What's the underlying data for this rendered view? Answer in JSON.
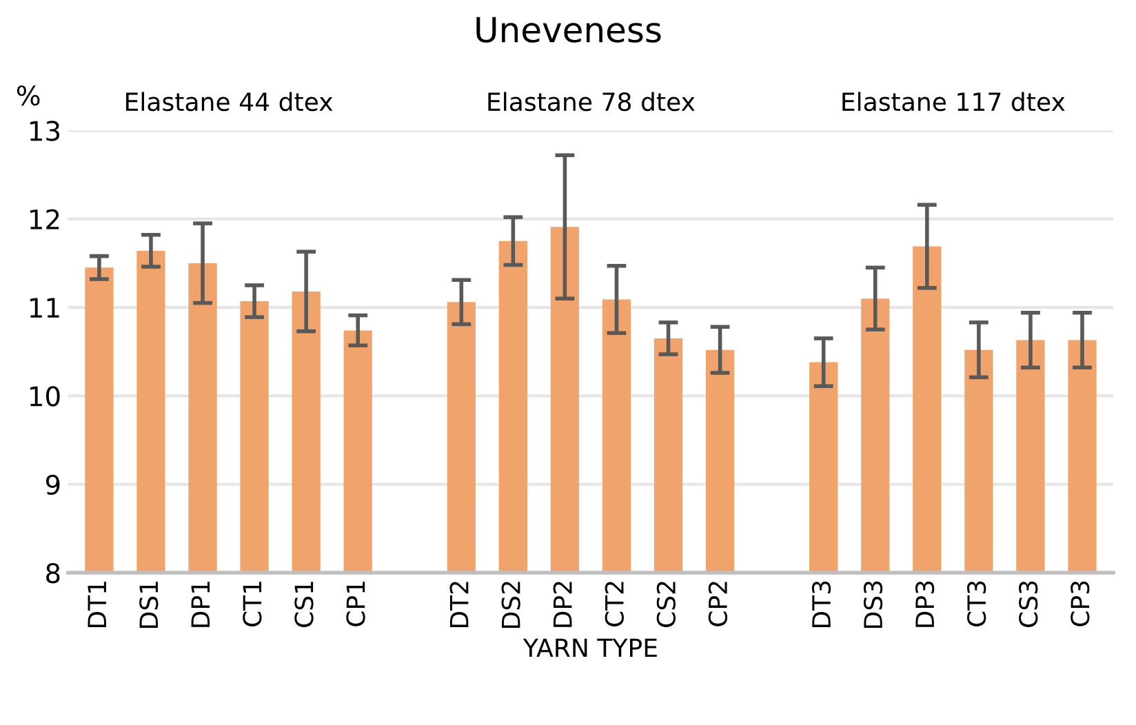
{
  "chart_data": {
    "type": "bar",
    "title": "Uneveness",
    "ylabel": "%",
    "xlabel": "YARN TYPE",
    "annotations": [
      "Elastane 44 dtex",
      "Elastane 78 dtex",
      "Elastane 117 dtex"
    ],
    "categories": [
      "DT1",
      "DS1",
      "DP1",
      "CT1",
      "CS1",
      "CP1",
      null,
      "DT2",
      "DS2",
      "DP2",
      "CT2",
      "CS2",
      "CP2",
      null,
      "DT3",
      "DS3",
      "DP3",
      "CT3",
      "CS3",
      "CP3"
    ],
    "values": [
      11.45,
      11.64,
      11.5,
      11.07,
      11.18,
      10.74,
      null,
      11.06,
      11.75,
      11.91,
      11.09,
      10.65,
      10.52,
      null,
      10.38,
      11.1,
      11.69,
      10.52,
      10.63,
      10.63
    ],
    "errors": [
      0.13,
      0.18,
      0.45,
      0.18,
      0.45,
      0.17,
      null,
      0.25,
      0.27,
      0.81,
      0.38,
      0.18,
      0.26,
      null,
      0.27,
      0.35,
      0.47,
      0.31,
      0.31,
      0.31
    ],
    "color": "#f0a46c",
    "ylim": [
      8,
      13
    ],
    "yticks": [
      8,
      9,
      10,
      11,
      12,
      13
    ],
    "grid": "y",
    "legend": false
  }
}
